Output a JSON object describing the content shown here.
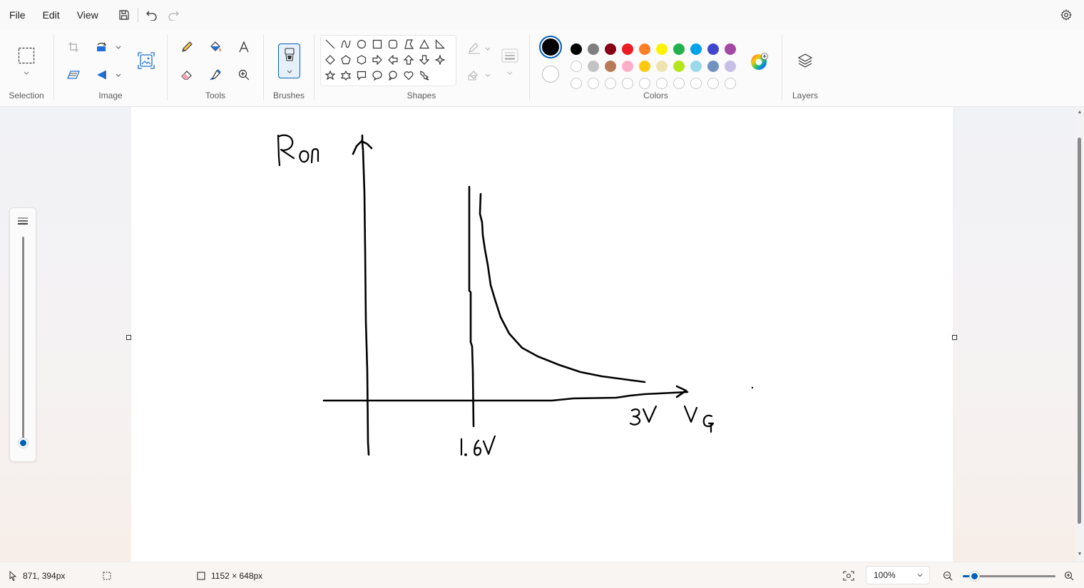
{
  "menu": {
    "file": "File",
    "edit": "Edit",
    "view": "View"
  },
  "ribbon": {
    "groups": {
      "selection": "Selection",
      "image": "Image",
      "tools": "Tools",
      "brushes": "Brushes",
      "shapes": "Shapes",
      "colors": "Colors",
      "layers": "Layers"
    },
    "colors": {
      "primary": "#000000",
      "secondary": "#ffffff",
      "row1": [
        "#000000",
        "#7f7f7f",
        "#880015",
        "#ed1c24",
        "#ff7f27",
        "#fff200",
        "#22b14c",
        "#00a2e8",
        "#3f48cc",
        "#a349a4"
      ],
      "row2": [
        "#ffffff",
        "#c3c3c3",
        "#b97a57",
        "#ffaec9",
        "#ffc90e",
        "#efe4b0",
        "#b5e61d",
        "#99d9ea",
        "#7092be",
        "#c8bfe7"
      ]
    }
  },
  "canvas": {
    "labels": {
      "y_axis": "Ron",
      "x_axis": "VG",
      "tick_threshold": "1.6V",
      "tick_max": "3V"
    }
  },
  "status": {
    "cursor_position": "871, 394px",
    "canvas_size": "1152 × 648px",
    "zoom": "100%",
    "zoom_fraction": 0.12
  }
}
